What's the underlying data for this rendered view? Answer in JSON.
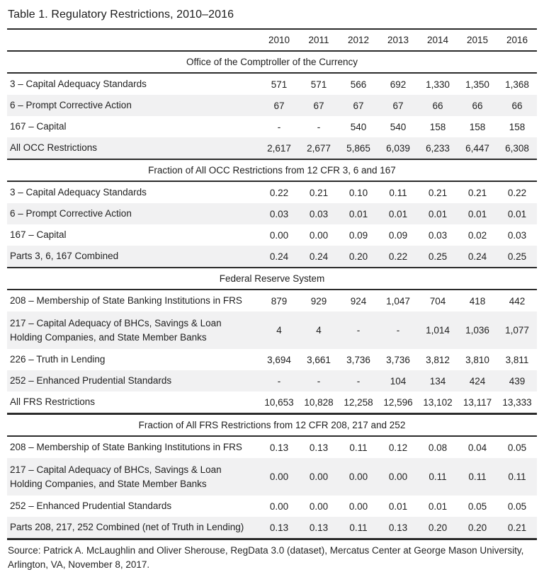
{
  "title": "Table 1. Regulatory Restrictions, 2010–2016",
  "columns": [
    "2010",
    "2011",
    "2012",
    "2013",
    "2014",
    "2015",
    "2016"
  ],
  "sections": [
    {
      "header": "Office of the Comptroller of the Currency",
      "rows": [
        {
          "label": "3 – Capital Adequacy Standards",
          "values": [
            "571",
            "571",
            "566",
            "692",
            "1,330",
            "1,350",
            "1,368"
          ]
        },
        {
          "label": "6 – Prompt Corrective Action",
          "values": [
            "67",
            "67",
            "67",
            "67",
            "66",
            "66",
            "66"
          ]
        },
        {
          "label": "167 – Capital",
          "values": [
            "-",
            "-",
            "540",
            "540",
            "158",
            "158",
            "158"
          ]
        },
        {
          "label": "All OCC Restrictions",
          "values": [
            "2,617",
            "2,677",
            "5,865",
            "6,039",
            "6,233",
            "6,447",
            "6,308"
          ]
        }
      ]
    },
    {
      "header": "Fraction of All OCC Restrictions from 12 CFR 3, 6 and 167",
      "rows": [
        {
          "label": "3 – Capital Adequacy Standards",
          "values": [
            "0.22",
            "0.21",
            "0.10",
            "0.11",
            "0.21",
            "0.21",
            "0.22"
          ]
        },
        {
          "label": "6 – Prompt Corrective Action",
          "values": [
            "0.03",
            "0.03",
            "0.01",
            "0.01",
            "0.01",
            "0.01",
            "0.01"
          ]
        },
        {
          "label": "167 – Capital",
          "values": [
            "0.00",
            "0.00",
            "0.09",
            "0.09",
            "0.03",
            "0.02",
            "0.03"
          ]
        },
        {
          "label": "Parts 3, 6, 167 Combined",
          "values": [
            "0.24",
            "0.24",
            "0.20",
            "0.22",
            "0.25",
            "0.24",
            "0.25"
          ]
        }
      ]
    },
    {
      "header": "Federal Reserve System",
      "rows": [
        {
          "label": "208 – Membership of State Banking Institutions in FRS",
          "values": [
            "879",
            "929",
            "924",
            "1,047",
            "704",
            "418",
            "442"
          ]
        },
        {
          "label": "217 – Capital Adequacy of BHCs, Savings & Loan Holding Companies, and State Member Banks",
          "values": [
            "4",
            "4",
            "-",
            "-",
            "1,014",
            "1,036",
            "1,077"
          ],
          "two_line": true
        },
        {
          "label": "226 – Truth in Lending",
          "values": [
            "3,694",
            "3,661",
            "3,736",
            "3,736",
            "3,812",
            "3,810",
            "3,811"
          ]
        },
        {
          "label": "252 – Enhanced Prudential Standards",
          "values": [
            "-",
            "-",
            "-",
            "104",
            "134",
            "424",
            "439"
          ]
        },
        {
          "label": "All FRS Restrictions",
          "values": [
            "10,653",
            "10,828",
            "12,258",
            "12,596",
            "13,102",
            "13,117",
            "13,333"
          ]
        }
      ]
    },
    {
      "header": "Fraction of All FRS Restrictions from 12 CFR 208, 217 and 252",
      "rows": [
        {
          "label": "208 – Membership of State Banking Institutions in FRS",
          "values": [
            "0.13",
            "0.13",
            "0.11",
            "0.12",
            "0.08",
            "0.04",
            "0.05"
          ]
        },
        {
          "label": "217 – Capital Adequacy of BHCs, Savings & Loan Holding Companies, and State Member Banks",
          "values": [
            "0.00",
            "0.00",
            "0.00",
            "0.00",
            "0.11",
            "0.11",
            "0.11"
          ],
          "two_line": true
        },
        {
          "label": "252 – Enhanced Prudential Standards",
          "values": [
            "0.00",
            "0.00",
            "0.00",
            "0.01",
            "0.01",
            "0.05",
            "0.05"
          ]
        },
        {
          "label": "Parts 208, 217, 252 Combined (net of Truth in Lending)",
          "values": [
            "0.13",
            "0.13",
            "0.11",
            "0.13",
            "0.20",
            "0.20",
            "0.21"
          ]
        }
      ]
    }
  ],
  "source": "Source: Patrick A. McLaughlin and Oliver Sherouse, RegData 3.0 (dataset), Mercatus Center at George Mason University, Arlington, VA, November 8, 2017.",
  "colors": {
    "text": "#212121",
    "rule": "#2b2b2b",
    "row_band": "#f1f1f2",
    "background": "#ffffff"
  }
}
